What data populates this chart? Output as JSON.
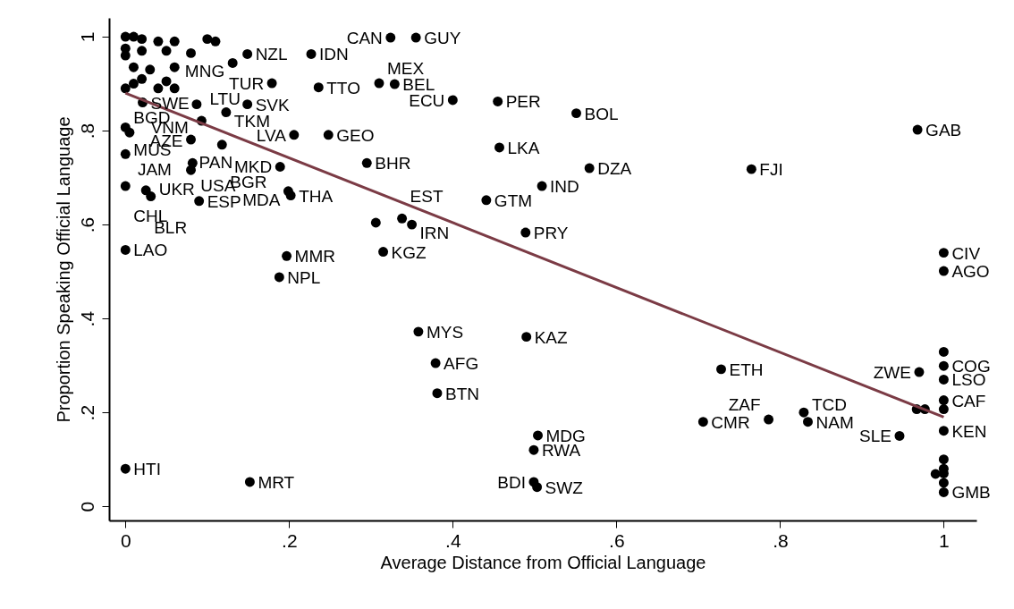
{
  "chart_data": {
    "type": "scatter",
    "xlabel": "Average Distance from Official Language",
    "ylabel": "Proportion Speaking Official Language",
    "xlim": [
      -0.02,
      1.04
    ],
    "ylim": [
      -0.03,
      1.04
    ],
    "xticks": [
      0,
      {
        "value": 0.2,
        "label": ".2"
      },
      {
        "value": 0.4,
        "label": ".4"
      },
      {
        "value": 0.6,
        "label": ".6"
      },
      {
        "value": 0.8,
        "label": ".8"
      },
      1
    ],
    "yticks": [
      0,
      {
        "value": 0.2,
        "label": ".2"
      },
      {
        "value": 0.4,
        "label": ".4"
      },
      {
        "value": 0.6,
        "label": ".6"
      },
      {
        "value": 0.8,
        "label": ".8"
      },
      1
    ],
    "grid": false,
    "series": [
      {
        "marker": "circle",
        "color": "#000000",
        "x": [
          0.227,
          0.149,
          0.131,
          0.179,
          0.236,
          0.149,
          0.123,
          0.093,
          0.087,
          0.021,
          0,
          0.005,
          0.08,
          0.118,
          0.206,
          0.248,
          0,
          0.082,
          0.08,
          0.189,
          0.295,
          0,
          0.025,
          0.031,
          0.09,
          0.199,
          0.202,
          0,
          0.197,
          0.188,
          0,
          0.152,
          0.315,
          0.338,
          0.35,
          0.324,
          0.355,
          0.31,
          0.329,
          0.4,
          0.455,
          0.551,
          0.457,
          0.567,
          0.509,
          0.441,
          0.489,
          0.968,
          0.765,
          0.358,
          0.49,
          0.379,
          0.381,
          0.728,
          0.706,
          0.786,
          0.829,
          0.834,
          0.946,
          0.97,
          0.504,
          0.499,
          0.499,
          0.503,
          1,
          1,
          1,
          1,
          1,
          1,
          1,
          0.306,
          1,
          1,
          1,
          1,
          1,
          1,
          0.967,
          0.977,
          0.99,
          0,
          0.01,
          0.02,
          0.04,
          0.06,
          0.1,
          0.11,
          0,
          0.02,
          0.05,
          0.08,
          0,
          0.01,
          0.03,
          0.06,
          0.02,
          0.05,
          0.01,
          0.04,
          0,
          0.06
        ],
        "values": [
          0.963,
          0.963,
          0.944,
          0.901,
          0.892,
          0.856,
          0.839,
          0.821,
          0.856,
          0.86,
          0.807,
          0.796,
          0.781,
          0.77,
          0.791,
          0.791,
          0.75,
          0.731,
          0.716,
          0.723,
          0.731,
          0.682,
          0.673,
          0.66,
          0.65,
          0.671,
          0.662,
          0.546,
          0.533,
          0.488,
          0.08,
          0.052,
          0.542,
          0.613,
          0.6,
          0.998,
          0.998,
          0.901,
          0.899,
          0.865,
          0.862,
          0.837,
          0.764,
          0.72,
          0.682,
          0.652,
          0.583,
          0.802,
          0.718,
          0.372,
          0.361,
          0.305,
          0.241,
          0.292,
          0.18,
          0.185,
          0.2,
          0.18,
          0.15,
          0.286,
          0.151,
          0.12,
          0.052,
          0.041,
          0.54,
          0.501,
          0.299,
          0.27,
          0.226,
          0.161,
          0.03,
          0.604,
          0.329,
          0.207,
          0.1,
          0.08,
          0.07,
          0.05,
          0.207,
          0.207,
          0.069,
          1,
          1,
          0.995,
          0.99,
          0.99,
          0.995,
          0.99,
          0.975,
          0.97,
          0.97,
          0.965,
          0.96,
          0.935,
          0.93,
          0.935,
          0.91,
          0.905,
          0.9,
          0.89,
          0.89,
          0.89
        ]
      },
      {
        "type": "line",
        "color": "#7b3b45",
        "x": [
          0,
          1
        ],
        "values": [
          0.88,
          0.19
        ]
      }
    ],
    "annotations": [
      {
        "text": "IDN",
        "x": 0.227,
        "y": 0.963
      },
      {
        "text": "NZL",
        "x": 0.149,
        "y": 0.963
      },
      {
        "text": "MNG",
        "x": 0.131,
        "y": 0.944
      },
      {
        "text": "TUR",
        "x": 0.179,
        "y": 0.901
      },
      {
        "text": "TTO",
        "x": 0.236,
        "y": 0.892
      },
      {
        "text": "SVK",
        "x": 0.149,
        "y": 0.856
      },
      {
        "text": "TKM",
        "x": 0.123,
        "y": 0.839
      },
      {
        "text": "LTU",
        "x": 0.093,
        "y": 0.821
      },
      {
        "text": "VNM",
        "x": 0.087,
        "y": 0.856
      },
      {
        "text": "SWE",
        "x": 0.021,
        "y": 0.86
      },
      {
        "text": "MUS",
        "x": 0,
        "y": 0.807
      },
      {
        "text": "JAM",
        "x": 0.005,
        "y": 0.796
      },
      {
        "text": "PAN",
        "x": 0.08,
        "y": 0.781
      },
      {
        "text": "BGR",
        "x": 0.118,
        "y": 0.77
      },
      {
        "text": "LVA",
        "x": 0.206,
        "y": 0.791
      },
      {
        "text": "GEO",
        "x": 0.248,
        "y": 0.791
      },
      {
        "text": "BGD",
        "x": 0,
        "y": 0.75
      },
      {
        "text": "USA",
        "x": 0.082,
        "y": 0.731
      },
      {
        "text": "AZE",
        "x": 0.08,
        "y": 0.716
      },
      {
        "text": "MKD",
        "x": 0.189,
        "y": 0.723
      },
      {
        "text": "BHR",
        "x": 0.295,
        "y": 0.731
      },
      {
        "text": "CHL",
        "x": 0,
        "y": 0.682
      },
      {
        "text": "BLR",
        "x": 0.025,
        "y": 0.673
      },
      {
        "text": "UKR",
        "x": 0.031,
        "y": 0.66
      },
      {
        "text": "ESP",
        "x": 0.09,
        "y": 0.65
      },
      {
        "text": "MDA",
        "x": 0.199,
        "y": 0.671
      },
      {
        "text": "THA",
        "x": 0.202,
        "y": 0.662
      },
      {
        "text": "LAO",
        "x": 0,
        "y": 0.546
      },
      {
        "text": "MMR",
        "x": 0.197,
        "y": 0.533
      },
      {
        "text": "NPL",
        "x": 0.188,
        "y": 0.488
      },
      {
        "text": "HTI",
        "x": 0,
        "y": 0.08
      },
      {
        "text": "MRT",
        "x": 0.152,
        "y": 0.052
      },
      {
        "text": "KGZ",
        "x": 0.315,
        "y": 0.542
      },
      {
        "text": "EST",
        "x": 0.338,
        "y": 0.613
      },
      {
        "text": "IRN",
        "x": 0.35,
        "y": 0.6
      },
      {
        "text": "CAN",
        "x": 0.324,
        "y": 0.998
      },
      {
        "text": "GUY",
        "x": 0.355,
        "y": 0.998
      },
      {
        "text": "MEX",
        "x": 0.31,
        "y": 0.901
      },
      {
        "text": "BEL",
        "x": 0.329,
        "y": 0.899
      },
      {
        "text": "ECU",
        "x": 0.4,
        "y": 0.865
      },
      {
        "text": "PER",
        "x": 0.455,
        "y": 0.862
      },
      {
        "text": "BOL",
        "x": 0.551,
        "y": 0.837
      },
      {
        "text": "LKA",
        "x": 0.457,
        "y": 0.764
      },
      {
        "text": "DZA",
        "x": 0.567,
        "y": 0.72
      },
      {
        "text": "IND",
        "x": 0.509,
        "y": 0.682
      },
      {
        "text": "GTM",
        "x": 0.441,
        "y": 0.652
      },
      {
        "text": "PRY",
        "x": 0.489,
        "y": 0.583
      },
      {
        "text": "GAB",
        "x": 0.968,
        "y": 0.802
      },
      {
        "text": "FJI",
        "x": 0.765,
        "y": 0.718
      },
      {
        "text": "MYS",
        "x": 0.358,
        "y": 0.372
      },
      {
        "text": "KAZ",
        "x": 0.49,
        "y": 0.361
      },
      {
        "text": "AFG",
        "x": 0.379,
        "y": 0.305
      },
      {
        "text": "BTN",
        "x": 0.381,
        "y": 0.241
      },
      {
        "text": "ETH",
        "x": 0.728,
        "y": 0.292
      },
      {
        "text": "CMR",
        "x": 0.706,
        "y": 0.18
      },
      {
        "text": "ZAF",
        "x": 0.786,
        "y": 0.185
      },
      {
        "text": "TCD",
        "x": 0.829,
        "y": 0.2
      },
      {
        "text": "NAM",
        "x": 0.834,
        "y": 0.18
      },
      {
        "text": "SLE",
        "x": 0.946,
        "y": 0.15
      },
      {
        "text": "ZWE",
        "x": 0.97,
        "y": 0.286
      },
      {
        "text": "MDG",
        "x": 0.504,
        "y": 0.151
      },
      {
        "text": "RWA",
        "x": 0.499,
        "y": 0.12
      },
      {
        "text": "BDI",
        "x": 0.499,
        "y": 0.052
      },
      {
        "text": "SWZ",
        "x": 0.503,
        "y": 0.041
      },
      {
        "text": "CIV",
        "x": 1,
        "y": 0.54
      },
      {
        "text": "AGO",
        "x": 1,
        "y": 0.501
      },
      {
        "text": "COG",
        "x": 1,
        "y": 0.299
      },
      {
        "text": "LSO",
        "x": 1,
        "y": 0.27
      },
      {
        "text": "CAF",
        "x": 1,
        "y": 0.226
      },
      {
        "text": "KEN",
        "x": 1,
        "y": 0.161
      },
      {
        "text": "GMB",
        "x": 1,
        "y": 0.03
      }
    ]
  }
}
